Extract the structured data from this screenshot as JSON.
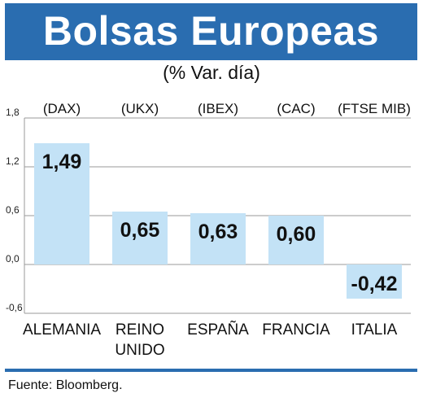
{
  "header": {
    "title": "Bolsas Europeas",
    "subtitle": "(% Var. día)"
  },
  "footer": {
    "source": "Fuente: Bloomberg."
  },
  "colors": {
    "brand": "#2a6db0",
    "bar": "#c3e2f6",
    "grid": "#9a9a9a"
  },
  "chart_data": {
    "type": "bar",
    "title": "Bolsas Europeas",
    "subtitle": "(% Var. día)",
    "categories": [
      "ALEMANIA",
      "REINO UNIDO",
      "ESPAÑA",
      "FRANCIA",
      "ITALIA"
    ],
    "category_lines": [
      [
        "ALEMANIA"
      ],
      [
        "REINO",
        "UNIDO"
      ],
      [
        "ESPAÑA"
      ],
      [
        "FRANCIA"
      ],
      [
        "ITALIA"
      ]
    ],
    "indices": [
      "(DAX)",
      "(UKX)",
      "(IBEX)",
      "(CAC)",
      "(FTSE MIB)"
    ],
    "values": [
      1.49,
      0.65,
      0.63,
      0.6,
      -0.42
    ],
    "value_labels": [
      "1,49",
      "0,65",
      "0,63",
      "0,60",
      "-0,42"
    ],
    "yticks": [
      1.8,
      1.2,
      0.6,
      0.0,
      -0.6
    ],
    "ytick_labels": [
      "1,8",
      "1,2",
      "0,6",
      "0,0",
      "-0,6"
    ],
    "ylim": [
      -0.6,
      1.8
    ],
    "grid": true,
    "xlabel": "",
    "ylabel": ""
  }
}
